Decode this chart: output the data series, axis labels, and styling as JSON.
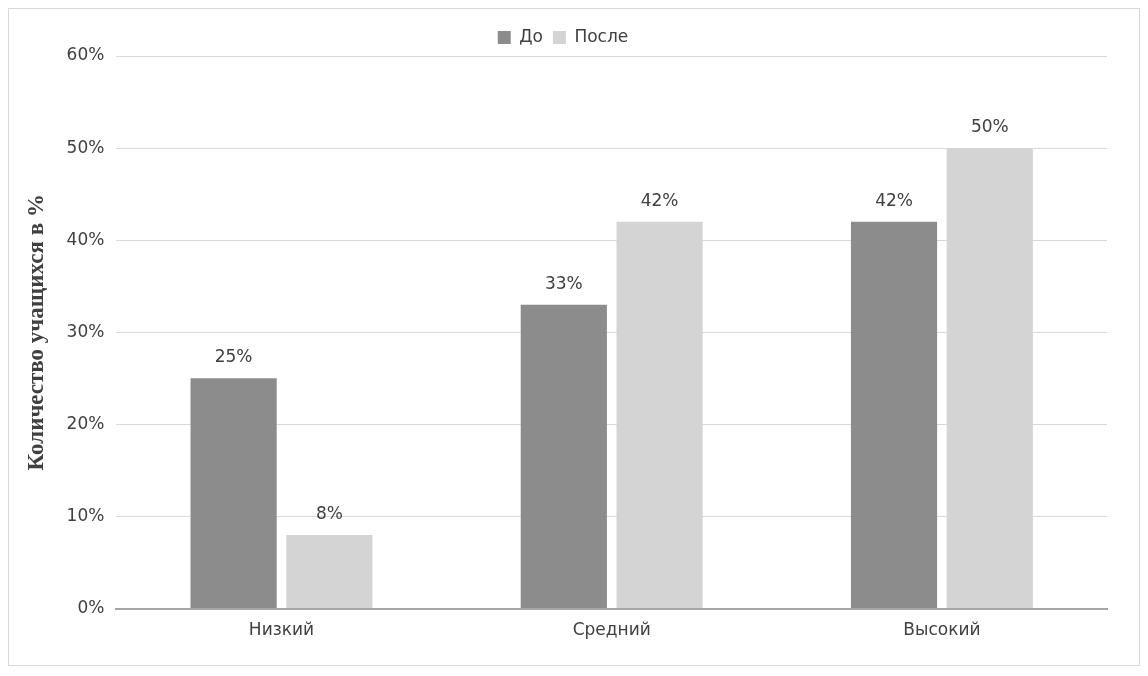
{
  "chart_data": {
    "type": "bar",
    "ylabel": "Количество учащихся в %",
    "categories": [
      "Низкий",
      "Средний",
      "Высокий"
    ],
    "series": [
      {
        "name": "До",
        "color": "#8c8c8c",
        "values": [
          25,
          33,
          42
        ],
        "value_labels": [
          "25%",
          "33%",
          "42%"
        ]
      },
      {
        "name": "После",
        "color": "#d4d4d4",
        "values": [
          8,
          42,
          50
        ],
        "value_labels": [
          "8%",
          "42%",
          "50%"
        ]
      }
    ],
    "ylim": [
      0,
      60
    ],
    "yticks": [
      {
        "value": 0,
        "label": "0%"
      },
      {
        "value": 10,
        "label": "10%"
      },
      {
        "value": 20,
        "label": "20%"
      },
      {
        "value": 30,
        "label": "30%"
      },
      {
        "value": 40,
        "label": "40%"
      },
      {
        "value": 50,
        "label": "50%"
      },
      {
        "value": 60,
        "label": "60%"
      }
    ],
    "grid": "y",
    "legend": "top"
  }
}
